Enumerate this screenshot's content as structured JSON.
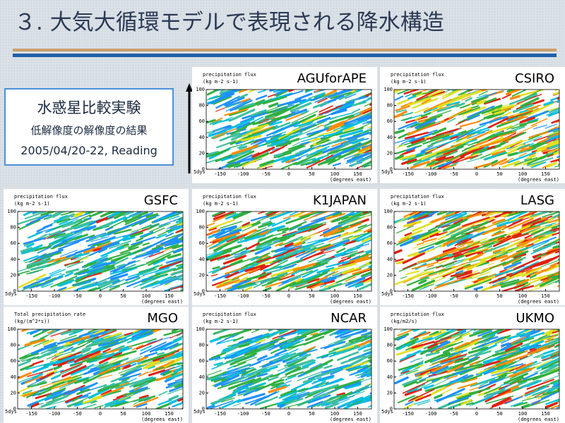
{
  "title": "３. 大気大循環モデルで表現される降水構造",
  "info": {
    "heading": "水惑星比較実験",
    "subheading": "低解像度の解像度の結果",
    "date": "2005/04/20-22, Reading"
  },
  "axes": {
    "xticks": [
      -150,
      -100,
      -50,
      0,
      50,
      100,
      150
    ],
    "yticks": [
      0,
      20,
      40,
      60,
      80,
      100
    ],
    "x_label": "(degrees east)",
    "time_label": "5dys"
  },
  "panels": [
    {
      "model": "AGUforAPE",
      "variable": "precipitation flux",
      "units": "(kg m-2 s-1)"
    },
    {
      "model": "CSIRO",
      "variable": "precipitation flux",
      "units": "(kg m-2 s-1)"
    },
    {
      "model": "GSFC",
      "variable": "precipitation flux",
      "units": "(kg m-2 s-1)"
    },
    {
      "model": "K1JAPAN",
      "variable": "precipitation flux",
      "units": "(kg m-2 s-1)"
    },
    {
      "model": "LASG",
      "variable": "precipitation flux",
      "units": "(kg m-2 s-1)"
    },
    {
      "model": "MGO",
      "variable": "Total precipitation rate",
      "units": "(kg/(m^2*s))"
    },
    {
      "model": "NCAR",
      "variable": "precipitation flux",
      "units": "(kg m-2 s-1)"
    },
    {
      "model": "UKMO",
      "variable": "precipitation flux",
      "units": "(kg/m2/s)"
    }
  ]
}
